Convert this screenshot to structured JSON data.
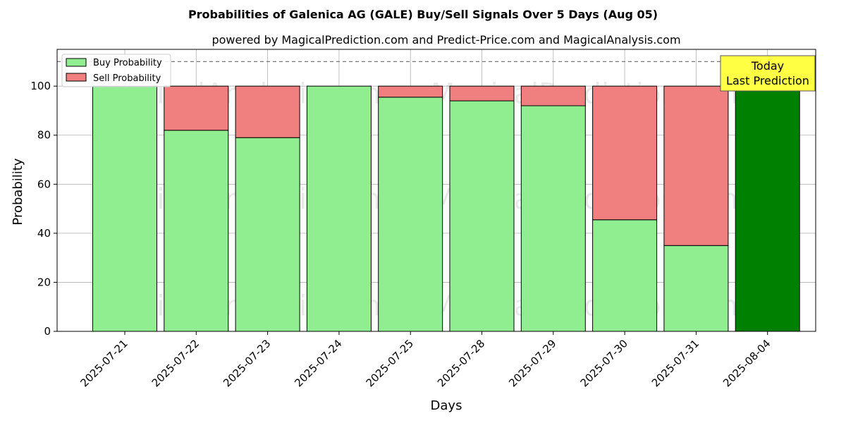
{
  "chart_data": {
    "type": "bar",
    "stacked": true,
    "title": "Probabilities of Galenica AG (GALE) Buy/Sell Signals Over 5 Days (Aug 05)",
    "subtitle": "powered by MagicalPrediction.com and Predict-Price.com and MagicalAnalysis.com",
    "xlabel": "Days",
    "ylabel": "Probability",
    "ylim": [
      0,
      115
    ],
    "yticks": [
      0,
      20,
      40,
      60,
      80,
      100
    ],
    "reference_line": 110,
    "grid": true,
    "legend_position": "top-left",
    "categories": [
      "2025-07-21",
      "2025-07-22",
      "2025-07-23",
      "2025-07-24",
      "2025-07-25",
      "2025-07-28",
      "2025-07-29",
      "2025-07-30",
      "2025-07-31",
      "2025-08-04"
    ],
    "series": [
      {
        "name": "Buy Probability",
        "color": "#90ee90",
        "values": [
          100,
          82,
          79,
          100,
          95.5,
          94,
          92,
          45.5,
          35,
          100
        ]
      },
      {
        "name": "Sell Probability",
        "color": "#f08080",
        "values": [
          0,
          18,
          21,
          0,
          4.5,
          6,
          8,
          54.5,
          65,
          0
        ]
      }
    ],
    "highlight": {
      "index": 9,
      "color": "#008000"
    },
    "annotation": {
      "line1": "Today",
      "line2": "Last Prediction",
      "color": "#ffff44"
    },
    "watermarks": [
      "MagicalAnalysis.com",
      "MagicalPrediction.com"
    ]
  }
}
